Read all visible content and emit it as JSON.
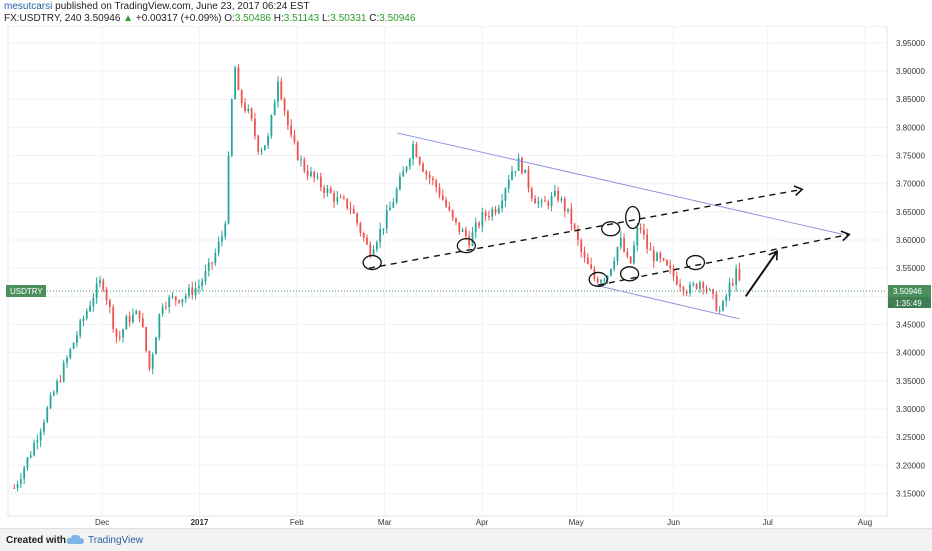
{
  "header": {
    "author": "mesutcarsi",
    "published": "published on TradingView.com, June 23, 2017 06:24 EST",
    "symbol": "FX:USDTRY, 240",
    "last": "3.50946",
    "change": "+0.00317 (+0.09%)",
    "o_label": "O:",
    "o_value": "3.50486",
    "h_label": "H:",
    "h_value": "3.51143",
    "l_label": "L:",
    "l_value": "3.50331",
    "c_label": "C:",
    "c_value": "3.50946"
  },
  "footer": {
    "created": "Created with",
    "brand": "TradingView"
  },
  "colors": {
    "up": "#26a69a",
    "down": "#ef5350",
    "channel": "#9a96e0",
    "annotation": "#111111",
    "price_tag": "#4a8f5c",
    "timer_tag": "#3f7d52",
    "grid": "#f0f2f5"
  },
  "chart_data": {
    "type": "candlestick",
    "symbol": "FX:USDTRY",
    "interval": "240",
    "x_tick_labels": [
      "Dec",
      "2017",
      "Feb",
      "Mar",
      "Apr",
      "May",
      "Jun",
      "Jul",
      "Aug"
    ],
    "y_tick_labels": [
      "3.15000",
      "3.20000",
      "3.25000",
      "3.30000",
      "3.35000",
      "3.40000",
      "3.45000",
      "3.50000",
      "3.55000",
      "3.60000",
      "3.65000",
      "3.70000",
      "3.75000",
      "3.80000",
      "3.85000",
      "3.90000",
      "3.95000"
    ],
    "ylim": [
      3.11,
      3.98
    ],
    "price_label": "USDTRY",
    "last_price": "3.50946",
    "countdown": "1:35:49",
    "grid": true,
    "price_path": [
      [
        "2016-11-03",
        3.16
      ],
      [
        "2016-11-08",
        3.22
      ],
      [
        "2016-11-15",
        3.32
      ],
      [
        "2016-11-22",
        3.42
      ],
      [
        "2016-11-28",
        3.5
      ],
      [
        "2016-12-01",
        3.53
      ],
      [
        "2016-12-06",
        3.42
      ],
      [
        "2016-12-09",
        3.46
      ],
      [
        "2016-12-13",
        3.47
      ],
      [
        "2016-12-16",
        3.37
      ],
      [
        "2016-12-20",
        3.49
      ],
      [
        "2016-12-27",
        3.5
      ],
      [
        "2017-01-01",
        3.52
      ],
      [
        "2017-01-05",
        3.56
      ],
      [
        "2017-01-09",
        3.62
      ],
      [
        "2017-01-11",
        3.81
      ],
      [
        "2017-01-12",
        3.93
      ],
      [
        "2017-01-13",
        3.86
      ],
      [
        "2017-01-17",
        3.82
      ],
      [
        "2017-01-20",
        3.76
      ],
      [
        "2017-01-23",
        3.78
      ],
      [
        "2017-01-26",
        3.89
      ],
      [
        "2017-01-30",
        3.78
      ],
      [
        "2017-02-03",
        3.73
      ],
      [
        "2017-02-08",
        3.7
      ],
      [
        "2017-02-14",
        3.67
      ],
      [
        "2017-02-18",
        3.66
      ],
      [
        "2017-02-24",
        3.58
      ],
      [
        "2017-02-28",
        3.62
      ],
      [
        "2017-03-03",
        3.66
      ],
      [
        "2017-03-07",
        3.72
      ],
      [
        "2017-03-10",
        3.77
      ],
      [
        "2017-03-14",
        3.72
      ],
      [
        "2017-03-18",
        3.69
      ],
      [
        "2017-03-23",
        3.63
      ],
      [
        "2017-03-28",
        3.6
      ],
      [
        "2017-04-01",
        3.64
      ],
      [
        "2017-04-06",
        3.66
      ],
      [
        "2017-04-10",
        3.72
      ],
      [
        "2017-04-13",
        3.74
      ],
      [
        "2017-04-17",
        3.68
      ],
      [
        "2017-04-20",
        3.66
      ],
      [
        "2017-04-25",
        3.68
      ],
      [
        "2017-04-29",
        3.64
      ],
      [
        "2017-05-03",
        3.57
      ],
      [
        "2017-05-07",
        3.53
      ],
      [
        "2017-05-11",
        3.54
      ],
      [
        "2017-05-15",
        3.6
      ],
      [
        "2017-05-18",
        3.55
      ],
      [
        "2017-05-21",
        3.63
      ],
      [
        "2017-05-24",
        3.58
      ],
      [
        "2017-05-28",
        3.56
      ],
      [
        "2017-06-02",
        3.53
      ],
      [
        "2017-06-06",
        3.51
      ],
      [
        "2017-06-10",
        3.53
      ],
      [
        "2017-06-13",
        3.5
      ],
      [
        "2017-06-16",
        3.47
      ],
      [
        "2017-06-19",
        3.52
      ],
      [
        "2017-06-21",
        3.54
      ],
      [
        "2017-06-23",
        3.5095
      ]
    ],
    "annotations": {
      "descending_channel_upper": [
        [
          "2017-03-05",
          3.79
        ],
        [
          "2017-07-25",
          3.61
        ]
      ],
      "descending_channel_lower": [
        [
          "2017-05-07",
          3.52
        ],
        [
          "2017-06-22",
          3.46
        ]
      ],
      "dashed_support_upper": [
        [
          "2017-02-24",
          3.55
        ],
        [
          "2017-07-12",
          3.69
        ]
      ],
      "dashed_support_lower": [
        [
          "2017-05-08",
          3.52
        ],
        [
          "2017-07-27",
          3.61
        ]
      ],
      "arrow": [
        [
          "2017-06-24",
          3.5
        ],
        [
          "2017-07-04",
          3.58
        ]
      ],
      "circled_points": [
        [
          "2017-02-25",
          3.56
        ],
        [
          "2017-03-27",
          3.59
        ],
        [
          "2017-05-08",
          3.53
        ],
        [
          "2017-05-12",
          3.62
        ],
        [
          "2017-05-18",
          3.54
        ],
        [
          "2017-05-19",
          3.64
        ],
        [
          "2017-06-08",
          3.56
        ]
      ]
    }
  }
}
